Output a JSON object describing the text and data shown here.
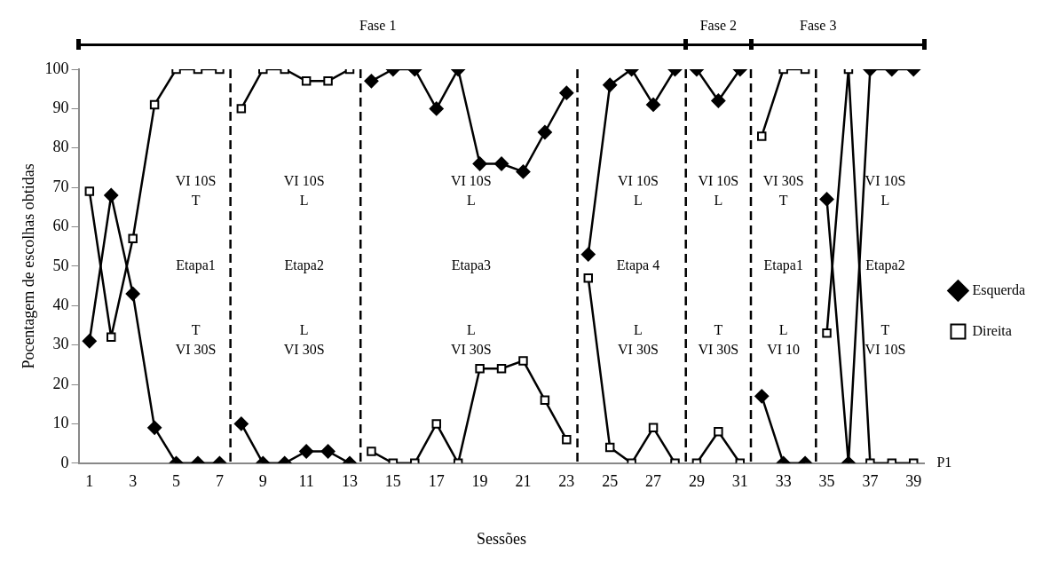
{
  "chart_data": {
    "type": "line",
    "xlabel": "Sessões",
    "ylabel": "Pocentagem de escolhas obtidas",
    "x": [
      1,
      2,
      3,
      4,
      5,
      6,
      7,
      8,
      9,
      10,
      11,
      12,
      13,
      14,
      15,
      16,
      17,
      18,
      19,
      20,
      21,
      22,
      23,
      24,
      25,
      26,
      27,
      28,
      29,
      30,
      31,
      32,
      33,
      34,
      35,
      36,
      37,
      38,
      39
    ],
    "xlim": [
      0.5,
      39.5
    ],
    "xticks": [
      1,
      3,
      5,
      7,
      9,
      11,
      13,
      15,
      17,
      19,
      21,
      23,
      25,
      27,
      29,
      31,
      33,
      35,
      37,
      39
    ],
    "ylim": [
      0,
      100
    ],
    "yticks": [
      0,
      10,
      20,
      30,
      40,
      50,
      60,
      70,
      80,
      90,
      100
    ],
    "grid": false,
    "legend": "right",
    "series": [
      {
        "name": "Esquerda",
        "color": "#000000",
        "marker": "diamond",
        "values": [
          31,
          68,
          43,
          9,
          0,
          0,
          0,
          10,
          0,
          0,
          3,
          3,
          0,
          97,
          100,
          100,
          90,
          100,
          76,
          76,
          74,
          84,
          94,
          53,
          96,
          100,
          91,
          100,
          100,
          92,
          100,
          17,
          0,
          0,
          67,
          0,
          100,
          100,
          100
        ]
      },
      {
        "name": "Direita",
        "color": "#000000",
        "marker": "square",
        "values": [
          69,
          32,
          57,
          91,
          100,
          100,
          100,
          90,
          100,
          100,
          97,
          97,
          100,
          3,
          0,
          0,
          10,
          0,
          24,
          24,
          26,
          16,
          6,
          47,
          4,
          0,
          9,
          0,
          0,
          8,
          0,
          83,
          100,
          100,
          33,
          100,
          0,
          0,
          0
        ]
      }
    ],
    "ref_lines": [
      {
        "axis": "x",
        "value": 7.5,
        "line_style": "dashed"
      },
      {
        "axis": "x",
        "value": 13.5,
        "line_style": "dashed"
      },
      {
        "axis": "x",
        "value": 23.5,
        "line_style": "dashed"
      },
      {
        "axis": "x",
        "value": 28.5,
        "line_style": "dashed"
      },
      {
        "axis": "x",
        "value": 31.5,
        "line_style": "dashed"
      },
      {
        "axis": "x",
        "value": 34.5,
        "line_style": "dashed"
      }
    ],
    "annotations": [
      "Fase 1",
      "Fase 2",
      "Fase 3",
      "VI 10S\nT",
      "Etapa1",
      "T\nVI 30S",
      "VI 10S\nL",
      "Etapa2",
      "L\nVI 30S",
      "VI 10S\nL",
      "Etapa3",
      "L\nVI 30S",
      "VI 10S\nL",
      "Etapa 4",
      "L\nVI 30S",
      "VI 10S\nL",
      "T\nVI 30S",
      "VI 30S\nT",
      "Etapa1",
      "L\nVI 10",
      "VI 10S\nL",
      "Etapa2",
      "T\nVI 10S",
      "P1"
    ]
  }
}
